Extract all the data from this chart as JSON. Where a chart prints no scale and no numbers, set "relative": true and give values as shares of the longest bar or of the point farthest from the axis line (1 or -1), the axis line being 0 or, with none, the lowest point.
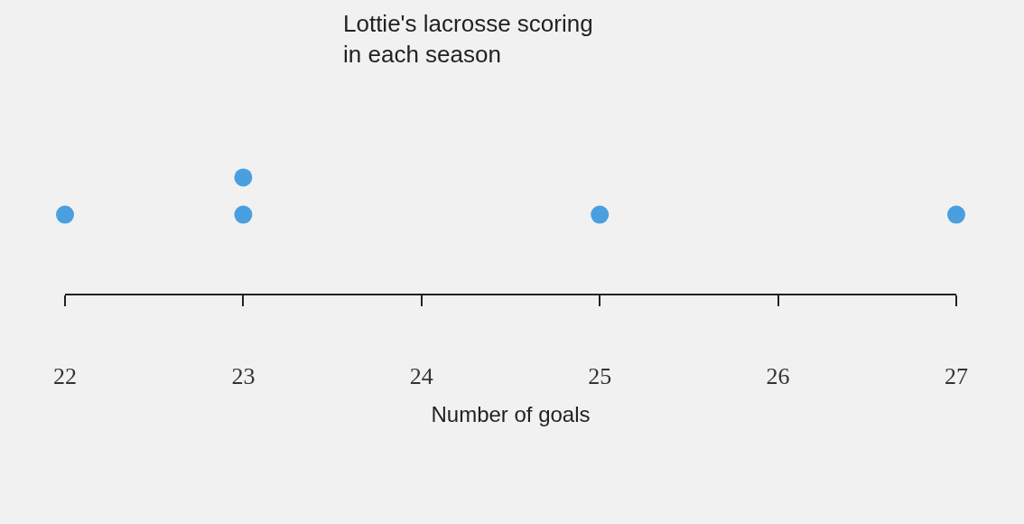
{
  "chart_data": {
    "type": "scatter",
    "title": "Lottie's lacrosse scoring\nin each season",
    "xlabel": "Number of goals",
    "relative": true,
    "xlim": [
      22,
      27
    ],
    "xticks": [
      22,
      23,
      24,
      25,
      26,
      27
    ],
    "grid": false,
    "legend": false,
    "marker": "circle",
    "series": [
      {
        "color": "#4a9fe0",
        "x": [
          22,
          23,
          23,
          25,
          27
        ],
        "values": [
          0.68,
          0.68,
          1,
          0.68,
          0.68
        ]
      }
    ]
  }
}
